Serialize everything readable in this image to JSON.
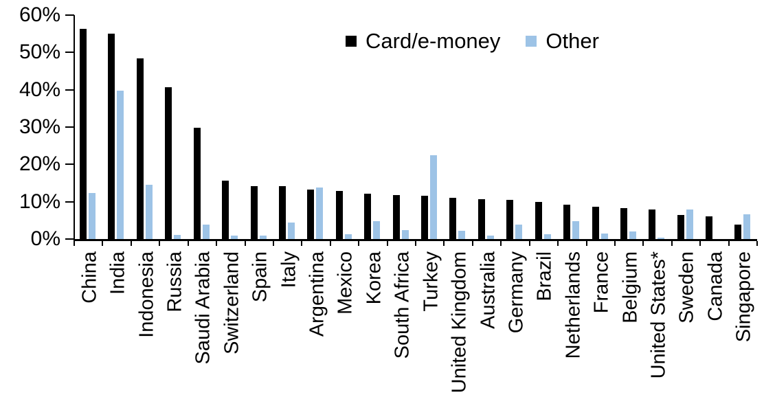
{
  "chart_data": {
    "type": "bar",
    "title": "",
    "xlabel": "",
    "ylabel": "",
    "ylim": [
      0,
      60
    ],
    "ytick_step": 10,
    "ytick_labels": [
      "0%",
      "10%",
      "20%",
      "30%",
      "40%",
      "50%",
      "60%"
    ],
    "grid": false,
    "legend_position": "top-center",
    "categories": [
      "China",
      "India",
      "Indonesia",
      "Russia",
      "Saudi Arabia",
      "Switzerland",
      "Spain",
      "Italy",
      "Argentina",
      "Mexico",
      "Korea",
      "South Africa",
      "Turkey",
      "United Kingdom",
      "Australia",
      "Germany",
      "Brazil",
      "Netherlands",
      "France",
      "Belgium",
      "United States*",
      "Sweden",
      "Canada",
      "Singapore"
    ],
    "series": [
      {
        "name": "Card/e-money",
        "color": "#000000",
        "values": [
          56.3,
          55.0,
          48.4,
          40.6,
          29.9,
          15.6,
          14.2,
          14.1,
          13.3,
          12.9,
          12.2,
          11.8,
          11.6,
          11.0,
          10.7,
          10.4,
          10.0,
          9.2,
          8.7,
          8.2,
          7.9,
          6.5,
          6.0,
          3.9
        ]
      },
      {
        "name": "Other",
        "color": "#9DC3E6",
        "values": [
          12.3,
          39.8,
          14.5,
          1.1,
          3.9,
          0.9,
          1.0,
          4.5,
          13.8,
          1.3,
          4.7,
          2.4,
          22.4,
          2.2,
          1.0,
          3.9,
          1.2,
          4.8,
          1.5,
          2.0,
          0.3,
          7.9,
          0.0,
          6.7
        ]
      }
    ]
  }
}
